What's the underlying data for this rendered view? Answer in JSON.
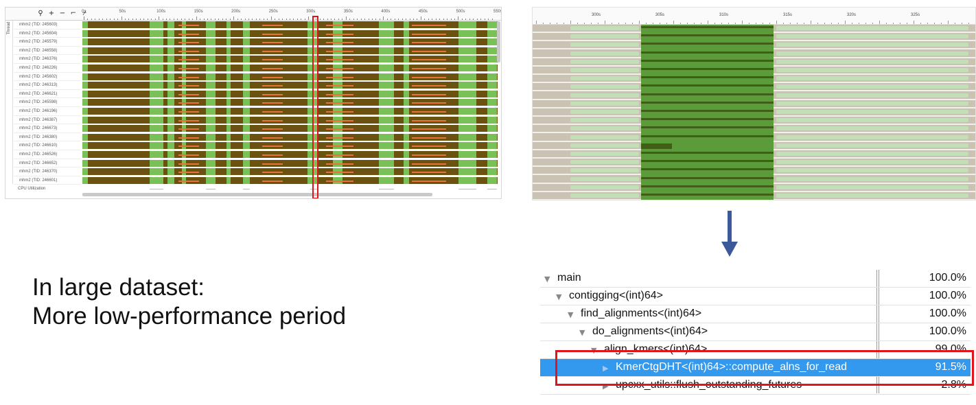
{
  "timeline": {
    "axis_ticks": [
      "0s",
      "50s",
      "100s",
      "150s",
      "200s",
      "250s",
      "300s",
      "350s",
      "400s",
      "450s",
      "500s",
      "550s"
    ],
    "thread_header": "Thread",
    "threads": [
      "mhm2 (TID: 245603)",
      "mhm2 (TID: 245604)",
      "mhm2 (TID: 245579)",
      "mhm2 (TID: 246558)",
      "mhm2 (TID: 246376)",
      "mhm2 (TID: 246226)",
      "mhm2 (TID: 245602)",
      "mhm2 (TID: 246313)",
      "mhm2 (TID: 246621)",
      "mhm2 (TID: 245598)",
      "mhm2 (TID: 246196)",
      "mhm2 (TID: 246387)",
      "mhm2 (TID: 246673)",
      "mhm2 (TID: 246380)",
      "mhm2 (TID: 246610)",
      "mhm2 (TID: 246526)",
      "mhm2 (TID: 246652)",
      "mhm2 (TID: 246370)",
      "mhm2 (TID: 246601)"
    ],
    "cpu_label": "CPU Utilization",
    "toolbar_icons": [
      "search-icon",
      "zoom-in-icon",
      "zoom-out-icon",
      "filter-icon",
      "filter-highlight-icon"
    ],
    "colors": {
      "busy": "#6b5210",
      "idle": "#79c156",
      "spin": "#e8743a",
      "highlight": "#e0141b"
    }
  },
  "zoom_panel": {
    "axis_ticks": [
      "300s",
      "305s",
      "310s",
      "315s",
      "320s",
      "325s"
    ],
    "colors": {
      "background": "#cac3b3",
      "active": "#5b9b39",
      "light": "#c2dfb8"
    }
  },
  "caption": {
    "line1": "In large dataset:",
    "line2": "More low-performance period"
  },
  "call_tree": {
    "rows": [
      {
        "name": "main",
        "pct": "100.0%",
        "depth": 0,
        "expanded": true
      },
      {
        "name": "contigging<(int)64>",
        "pct": "100.0%",
        "depth": 1,
        "expanded": true
      },
      {
        "name": "find_alignments<(int)64>",
        "pct": "100.0%",
        "depth": 2,
        "expanded": true
      },
      {
        "name": "do_alignments<(int)64>",
        "pct": "100.0%",
        "depth": 3,
        "expanded": true
      },
      {
        "name": "align_kmers<(int)64>",
        "pct": "99.0%",
        "depth": 4,
        "expanded": true
      },
      {
        "name": "KmerCtgDHT<(int)64>::compute_alns_for_read",
        "pct": "91.5%",
        "depth": 5,
        "expanded": false,
        "selected": true
      },
      {
        "name": "upcxx_utils::flush_outstanding_futures",
        "pct": "2.8%",
        "depth": 5,
        "expanded": false
      }
    ],
    "selection_color": "#3399ee"
  }
}
